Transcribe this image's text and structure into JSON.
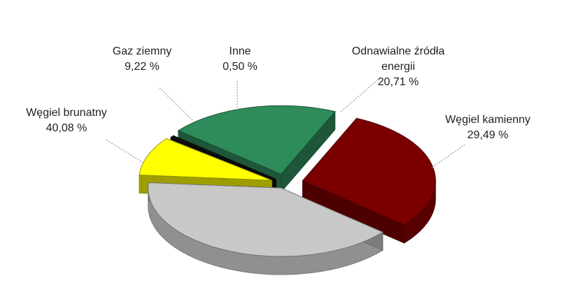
{
  "chart_data": {
    "type": "pie",
    "style": "3d-exploded",
    "slices": [
      {
        "name": "Węgiel kamienny",
        "value": 29.49,
        "value_text": "29,49 %",
        "color": "#7a0000",
        "label_lines": [
          "Węgiel kamienny",
          "29,49 %"
        ]
      },
      {
        "name": "Węgiel brunatny",
        "value": 40.08,
        "value_text": "40,08 %",
        "color": "#c8c8c8",
        "label_lines": [
          "Węgiel brunatny",
          "40,08 %"
        ]
      },
      {
        "name": "Gaz ziemny",
        "value": 9.22,
        "value_text": "9,22 %",
        "color": "#ffff00",
        "label_lines": [
          "Gaz ziemny",
          "9,22 %"
        ]
      },
      {
        "name": "Inne",
        "value": 0.5,
        "value_text": "0,50 %",
        "color": "#111111",
        "label_lines": [
          "Inne",
          "0,50 %"
        ]
      },
      {
        "name": "Odnawialne źródła energii",
        "value": 20.71,
        "value_text": "20,71 %",
        "color": "#2e8b5a",
        "label_lines": [
          "Odnawialne źródła",
          "energii",
          "20,71 %"
        ]
      }
    ],
    "legend": "none",
    "labels": "outside-with-leader-lines"
  }
}
